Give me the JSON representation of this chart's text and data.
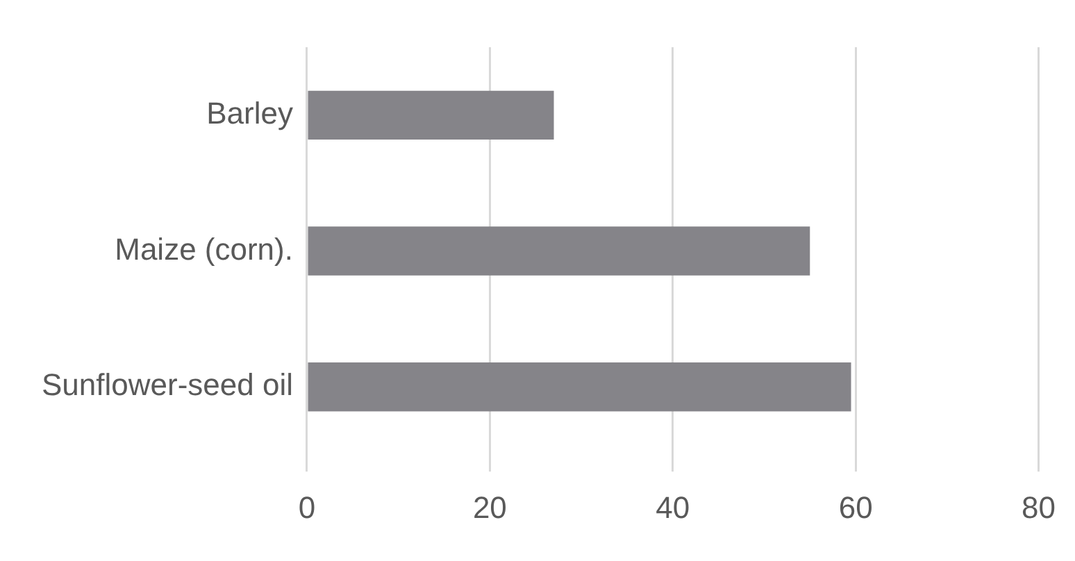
{
  "chart_data": {
    "type": "bar",
    "orientation": "horizontal",
    "categories": [
      "Barley",
      "Maize (corn).",
      "Sunflower-seed oil"
    ],
    "values": [
      27,
      55,
      59.5
    ],
    "color": "#858489",
    "xlim": [
      0,
      80
    ],
    "xticks": [
      0,
      20,
      40,
      60,
      80
    ],
    "grid": "x",
    "legend": false
  }
}
